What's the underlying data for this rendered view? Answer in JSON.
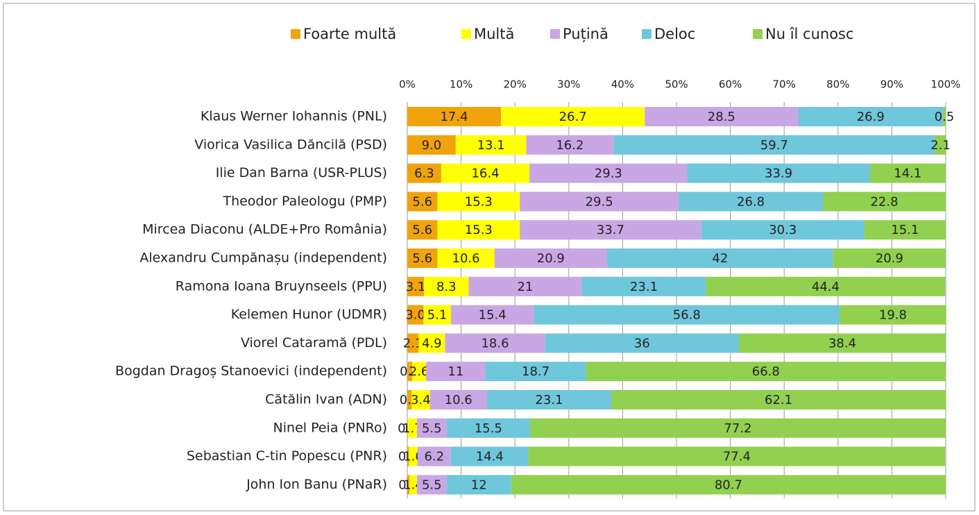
{
  "chart_data": {
    "type": "stacked-barh",
    "categories": [
      "Klaus Werner Iohannis (PNL)",
      "Viorica Vasilica Dăncilă (PSD)",
      "Ilie Dan Barna (USR-PLUS)",
      "Theodor Paleologu (PMP)",
      "Mircea Diaconu (ALDE+Pro România)",
      "Alexandru Cumpănașu (independent)",
      "Ramona Ioana Bruynseels (PPU)",
      "Kelemen Hunor (UDMR)",
      "Viorel Cataramă (PDL)",
      "Bogdan Dragoș Stanoevici (independent)",
      "Cătălin Ivan (ADN)",
      "Ninel Peia (PNRo)",
      "Sebastian C-tin Popescu (PNR)",
      "John Ion Banu (PNaR)"
    ],
    "series": [
      {
        "name": "Foarte multă",
        "color": "#f0a30a",
        "values": [
          17.4,
          9,
          6.3,
          5.6,
          5.6,
          5.6,
          3.1,
          3,
          2.1,
          0.9,
          0.8,
          0.1,
          0.3,
          0.4
        ],
        "value_labels": [
          "17.4",
          "9.0",
          "6.3",
          "5.6",
          "5.6",
          "5.6",
          "3.1",
          "3.0",
          "2.1",
          "0.9",
          "0.8",
          "0.1",
          "0.3",
          "0.4"
        ]
      },
      {
        "name": "Multă",
        "color": "#ffff00",
        "values": [
          26.7,
          13.1,
          16.4,
          15.3,
          15.3,
          10.6,
          8.3,
          5.1,
          4.9,
          2.6,
          3.4,
          1.7,
          1.6,
          1.4
        ]
      },
      {
        "name": "Puțină",
        "color": "#c9a6e4",
        "values": [
          28.5,
          16.2,
          29.3,
          29.5,
          33.7,
          20.9,
          21,
          15.4,
          18.6,
          11,
          10.6,
          5.5,
          6.2,
          5.5
        ]
      },
      {
        "name": "Deloc",
        "color": "#6fc7db",
        "values": [
          26.9,
          59.7,
          33.9,
          26.8,
          30.3,
          42,
          23.1,
          56.8,
          36,
          18.7,
          23.1,
          15.5,
          14.4,
          12
        ]
      },
      {
        "name": "Nu îl cunosc",
        "color": "#92d050",
        "values": [
          0.5,
          2.1,
          14.1,
          22.8,
          15.1,
          20.9,
          44.4,
          19.8,
          38.4,
          66.8,
          62.1,
          77.2,
          77.4,
          80.7
        ]
      }
    ],
    "xlim": [
      0,
      100
    ],
    "xticks": [
      {
        "value": 0,
        "label": "0%"
      },
      {
        "value": 10,
        "label": "10%"
      },
      {
        "value": 20,
        "label": "20%"
      },
      {
        "value": 30,
        "label": "30%"
      },
      {
        "value": 40,
        "label": "40%"
      },
      {
        "value": 50,
        "label": "50%"
      },
      {
        "value": 60,
        "label": "60%"
      },
      {
        "value": 70,
        "label": "70%"
      },
      {
        "value": 80,
        "label": "80%"
      },
      {
        "value": 90,
        "label": "90%"
      },
      {
        "value": 100,
        "label": "100%"
      }
    ],
    "grid": true,
    "legend": "top"
  }
}
